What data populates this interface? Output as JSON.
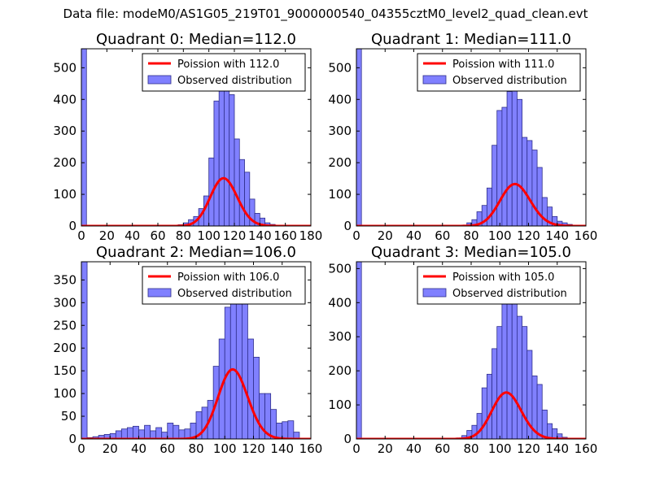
{
  "figure": {
    "suptitle": "Data file: modeM0/AS1G05_219T01_9000000540_04355cztM0_level2_quad_clean.evt",
    "colors": {
      "bar_fill": "#8080ff",
      "bar_edge": "#2e2e8a",
      "fit_line": "#ff0000",
      "axes": "#000000"
    }
  },
  "chart_data": [
    {
      "type": "bar",
      "title": "Quadrant 0: Median=112.0",
      "xlim": [
        0,
        180
      ],
      "ylim": [
        0,
        560
      ],
      "xticks": [
        0,
        20,
        40,
        60,
        80,
        100,
        120,
        140,
        160,
        180
      ],
      "yticks": [
        0,
        100,
        200,
        300,
        400,
        500
      ],
      "bin_width": 4,
      "bin_starts": [
        0,
        56,
        72,
        76,
        80,
        84,
        88,
        92,
        96,
        100,
        104,
        108,
        112,
        116,
        120,
        124,
        128,
        132,
        136,
        140,
        144,
        148,
        152
      ],
      "counts": [
        560,
        1,
        2,
        4,
        10,
        20,
        30,
        55,
        95,
        215,
        395,
        525,
        500,
        415,
        275,
        210,
        170,
        85,
        40,
        25,
        10,
        5,
        2
      ],
      "fit": {
        "type": "poisson",
        "mean": 112.0,
        "scale": 4000
      },
      "legend": [
        "Poission with 112.0",
        "Observed distribution"
      ]
    },
    {
      "type": "bar",
      "title": "Quadrant 1: Median=111.0",
      "xlim": [
        0,
        160
      ],
      "ylim": [
        0,
        560
      ],
      "xticks": [
        0,
        20,
        40,
        60,
        80,
        100,
        120,
        140,
        160
      ],
      "yticks": [
        0,
        100,
        200,
        300,
        400,
        500
      ],
      "bin_width": 3.5,
      "bin_starts": [
        0,
        63,
        73.5,
        77,
        80.5,
        84,
        87.5,
        91,
        94.5,
        98,
        101.5,
        105,
        108.5,
        112,
        115.5,
        119,
        122.5,
        126,
        129.5,
        133,
        136.5,
        140,
        143.5,
        147
      ],
      "counts": [
        560,
        2,
        3,
        10,
        20,
        45,
        65,
        120,
        255,
        365,
        375,
        425,
        490,
        400,
        280,
        270,
        240,
        185,
        90,
        60,
        30,
        15,
        10,
        5
      ],
      "fit": {
        "type": "poisson",
        "mean": 111.0,
        "scale": 3500
      },
      "legend": [
        "Poission with 111.0",
        "Observed distribution"
      ]
    },
    {
      "type": "bar",
      "title": "Quadrant 2: Median=106.0",
      "xlim": [
        0,
        160
      ],
      "ylim": [
        0,
        390
      ],
      "xticks": [
        0,
        20,
        40,
        60,
        80,
        100,
        120,
        140,
        160
      ],
      "yticks": [
        0,
        50,
        100,
        150,
        200,
        250,
        300,
        350
      ],
      "bin_width": 4,
      "bin_starts": [
        0,
        4,
        8,
        12,
        16,
        20,
        24,
        28,
        32,
        36,
        40,
        44,
        48,
        52,
        56,
        60,
        64,
        68,
        72,
        76,
        80,
        84,
        88,
        92,
        96,
        100,
        104,
        108,
        112,
        116,
        120,
        124,
        128,
        132,
        136,
        140,
        144,
        148
      ],
      "counts": [
        390,
        3,
        5,
        8,
        10,
        12,
        18,
        22,
        25,
        28,
        20,
        30,
        18,
        25,
        15,
        35,
        30,
        20,
        22,
        35,
        60,
        70,
        85,
        160,
        220,
        290,
        325,
        350,
        370,
        220,
        180,
        100,
        100,
        65,
        35,
        38,
        40,
        15
      ],
      "fit": {
        "type": "poisson",
        "mean": 106.0,
        "scale": 3950
      },
      "legend": [
        "Poission with 106.0",
        "Observed distribution"
      ]
    },
    {
      "type": "bar",
      "title": "Quadrant 3: Median=105.0",
      "xlim": [
        0,
        160
      ],
      "ylim": [
        0,
        520
      ],
      "xticks": [
        0,
        20,
        40,
        60,
        80,
        100,
        120,
        140,
        160
      ],
      "yticks": [
        0,
        100,
        200,
        300,
        400,
        500
      ],
      "bin_width": 3.5,
      "bin_starts": [
        0,
        63,
        70,
        73.5,
        77,
        80.5,
        84,
        87.5,
        91,
        94.5,
        98,
        101.5,
        105,
        108.5,
        112,
        115.5,
        119,
        122.5,
        126,
        129.5,
        133,
        136.5,
        140,
        143.5
      ],
      "counts": [
        520,
        2,
        3,
        10,
        25,
        40,
        75,
        150,
        190,
        265,
        330,
        460,
        480,
        420,
        360,
        330,
        260,
        185,
        160,
        85,
        45,
        30,
        15,
        5
      ],
      "fit": {
        "type": "poisson",
        "mean": 105.0,
        "scale": 3500
      },
      "legend": [
        "Poission with 105.0",
        "Observed distribution"
      ]
    }
  ]
}
